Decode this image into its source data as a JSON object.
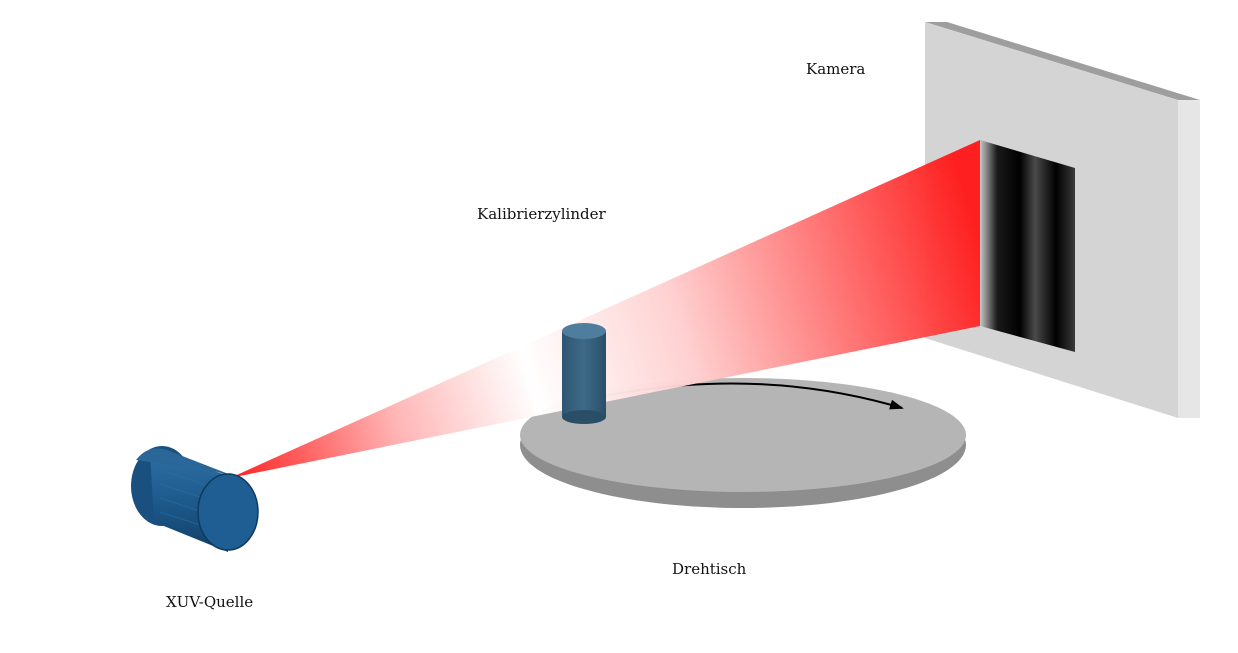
{
  "labels": {
    "camera": "Kamera",
    "calibration_cylinder": "Kalibrierzylinder",
    "rotary_table": "Drehtisch",
    "source": "XUV-Quelle"
  },
  "colors": {
    "beam": "#ff1a1a",
    "source": "#1d5a8c",
    "cylinder": "#3b6683",
    "table": "#b5b5b5",
    "camera_frame": "#d2d2d2"
  }
}
